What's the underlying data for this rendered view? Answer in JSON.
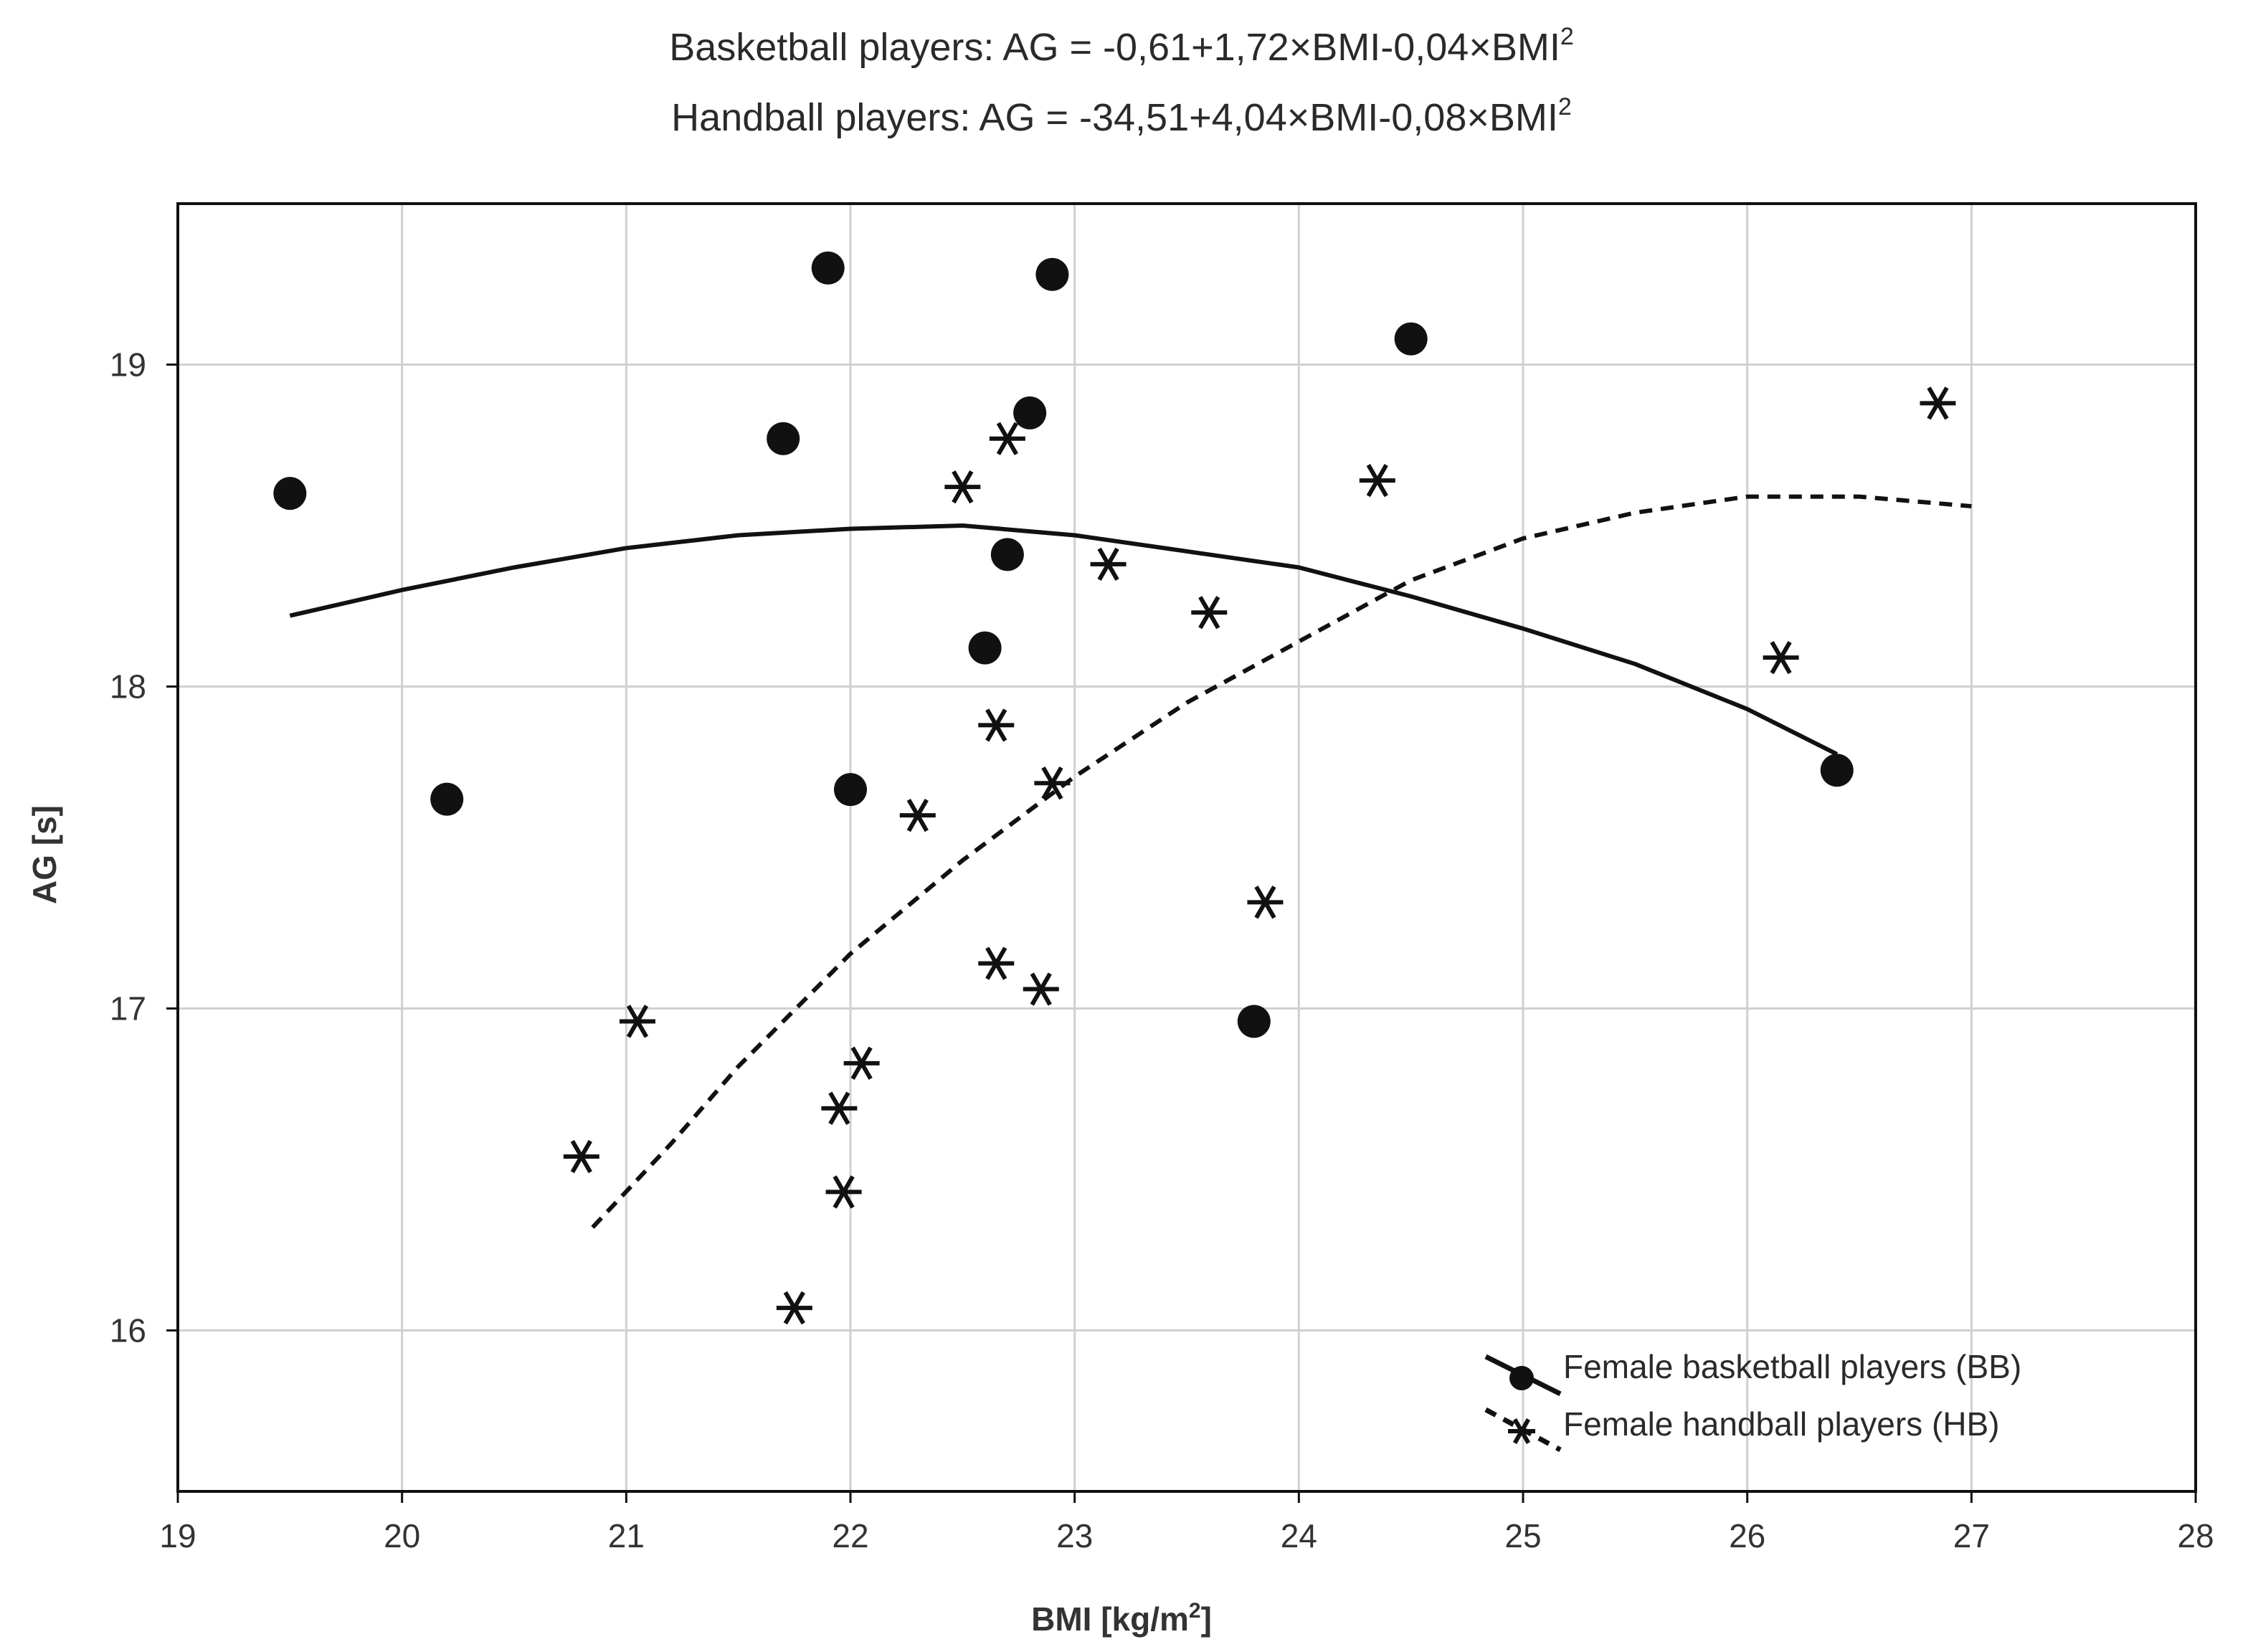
{
  "chart_data": {
    "type": "scatter",
    "title_lines": [
      {
        "prefix": "Basketball players: AG = -0,61+1,72×BMI-0,04×BMI",
        "sup": "2"
      },
      {
        "prefix": "Handball players: AG = -34,51+4,04×BMI-0,08×BMI",
        "sup": "2"
      }
    ],
    "xlabel": {
      "main": "BMI [kg/m",
      "sup": "2",
      "tail": "]"
    },
    "ylabel": "AG [s]",
    "xlim": [
      19,
      28
    ],
    "ylim": [
      15.5,
      19.5
    ],
    "xticks": [
      19,
      20,
      21,
      22,
      23,
      24,
      25,
      26,
      27,
      28
    ],
    "yticks": [
      16,
      17,
      18,
      19
    ],
    "grid": true,
    "legend_position": "bottom-right",
    "series": [
      {
        "name": "Female basketball players (BB)",
        "marker": "circle",
        "line_style": "solid",
        "points": [
          [
            19.5,
            18.6
          ],
          [
            20.2,
            17.65
          ],
          [
            21.7,
            18.77
          ],
          [
            21.9,
            19.3
          ],
          [
            22.0,
            17.68
          ],
          [
            22.6,
            18.12
          ],
          [
            22.7,
            18.41
          ],
          [
            22.8,
            18.85
          ],
          [
            22.9,
            19.28
          ],
          [
            23.8,
            16.96
          ],
          [
            24.5,
            19.08
          ],
          [
            26.4,
            17.74
          ]
        ],
        "fit": {
          "x_range": [
            19.5,
            26.4
          ],
          "curve": [
            [
              19.5,
              18.22
            ],
            [
              20.0,
              18.3
            ],
            [
              20.5,
              18.37
            ],
            [
              21.0,
              18.43
            ],
            [
              21.5,
              18.47
            ],
            [
              22.0,
              18.49
            ],
            [
              22.5,
              18.5
            ],
            [
              23.0,
              18.47
            ],
            [
              23.5,
              18.42
            ],
            [
              24.0,
              18.37
            ],
            [
              24.5,
              18.28
            ],
            [
              25.0,
              18.18
            ],
            [
              25.5,
              18.07
            ],
            [
              26.0,
              17.93
            ],
            [
              26.4,
              17.79
            ]
          ]
        }
      },
      {
        "name": "Female handball players (HB)",
        "marker": "asterisk",
        "line_style": "dashed",
        "points": [
          [
            20.8,
            16.54
          ],
          [
            21.05,
            16.96
          ],
          [
            21.75,
            16.07
          ],
          [
            21.95,
            16.69
          ],
          [
            21.97,
            16.43
          ],
          [
            22.05,
            16.83
          ],
          [
            22.3,
            17.6
          ],
          [
            22.5,
            18.62
          ],
          [
            22.65,
            17.14
          ],
          [
            22.65,
            17.88
          ],
          [
            22.7,
            18.77
          ],
          [
            22.85,
            17.06
          ],
          [
            22.9,
            17.7
          ],
          [
            23.15,
            18.38
          ],
          [
            23.6,
            18.23
          ],
          [
            23.85,
            17.33
          ],
          [
            24.35,
            18.64
          ],
          [
            26.15,
            18.09
          ],
          [
            26.85,
            18.88
          ]
        ],
        "fit": {
          "x_range": [
            20.85,
            27.0
          ],
          "curve": [
            [
              20.85,
              16.32
            ],
            [
              21.2,
              16.58
            ],
            [
              21.5,
              16.82
            ],
            [
              22.0,
              17.17
            ],
            [
              22.5,
              17.46
            ],
            [
              23.0,
              17.72
            ],
            [
              23.5,
              17.95
            ],
            [
              24.0,
              18.14
            ],
            [
              24.5,
              18.33
            ],
            [
              25.0,
              18.46
            ],
            [
              25.5,
              18.54
            ],
            [
              26.0,
              18.59
            ],
            [
              26.5,
              18.59
            ],
            [
              27.0,
              18.56
            ]
          ]
        }
      }
    ]
  }
}
